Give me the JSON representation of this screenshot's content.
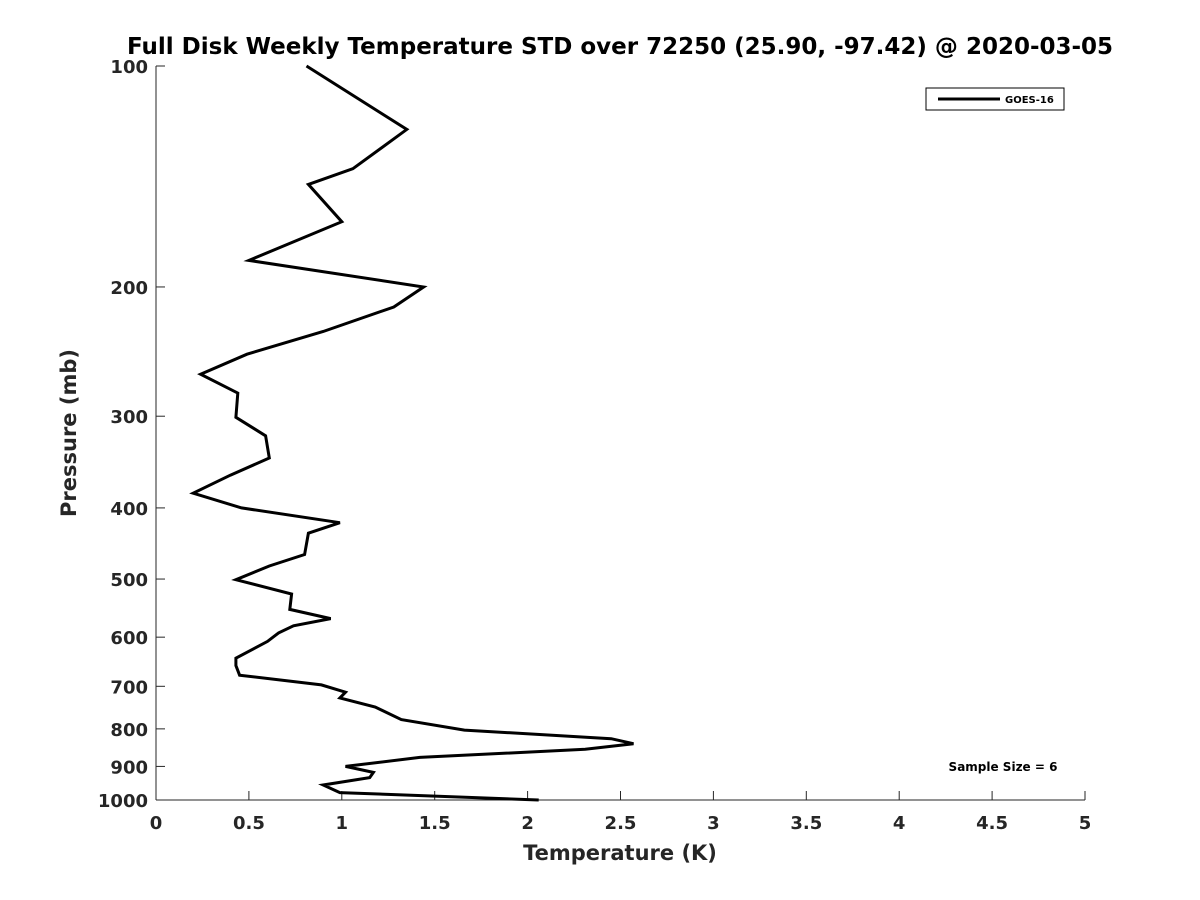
{
  "chart_data": {
    "type": "line",
    "title": "Full Disk Weekly Temperature STD over 72250 (25.90, -97.42) @ 2020-03-05",
    "xlabel": "Temperature (K)",
    "ylabel": "Pressure (mb)",
    "xlim": [
      0,
      5
    ],
    "ylim": [
      100,
      1000
    ],
    "y_scale": "log",
    "y_reversed": true,
    "x_ticks": [
      "0",
      "0.5",
      "1",
      "1.5",
      "2",
      "2.5",
      "3",
      "3.5",
      "4",
      "4.5",
      "5"
    ],
    "y_ticks": [
      "100",
      "200",
      "300",
      "400",
      "500",
      "600",
      "700",
      "800",
      "900",
      "1000"
    ],
    "grid": false,
    "legend_position": "top-right",
    "series": [
      {
        "name": "GOES-16",
        "color": "#000000",
        "points": [
          [
            0.81,
            100
          ],
          [
            1.35,
            122
          ],
          [
            1.06,
            138
          ],
          [
            0.82,
            145
          ],
          [
            1.0,
            163
          ],
          [
            0.5,
            184
          ],
          [
            1.44,
            200
          ],
          [
            1.28,
            213
          ],
          [
            0.9,
            230
          ],
          [
            0.49,
            247
          ],
          [
            0.24,
            263
          ],
          [
            0.44,
            279
          ],
          [
            0.43,
            301
          ],
          [
            0.59,
            319
          ],
          [
            0.61,
            342
          ],
          [
            0.4,
            361
          ],
          [
            0.2,
            382
          ],
          [
            0.46,
            400
          ],
          [
            0.99,
            419
          ],
          [
            0.82,
            433
          ],
          [
            0.8,
            463
          ],
          [
            0.61,
            480
          ],
          [
            0.43,
            501
          ],
          [
            0.73,
            524
          ],
          [
            0.72,
            550
          ],
          [
            0.94,
            566
          ],
          [
            0.74,
            579
          ],
          [
            0.66,
            592
          ],
          [
            0.6,
            608
          ],
          [
            0.43,
            641
          ],
          [
            0.43,
            656
          ],
          [
            0.45,
            676
          ],
          [
            0.89,
            697
          ],
          [
            1.02,
            713
          ],
          [
            0.99,
            726
          ],
          [
            1.18,
            747
          ],
          [
            1.32,
            777
          ],
          [
            1.66,
            803
          ],
          [
            2.45,
            825
          ],
          [
            2.57,
            838
          ],
          [
            2.31,
            853
          ],
          [
            1.42,
            875
          ],
          [
            1.02,
            900
          ],
          [
            1.17,
            917
          ],
          [
            1.15,
            932
          ],
          [
            0.9,
            954
          ],
          [
            0.99,
            977
          ],
          [
            2.06,
            1000
          ]
        ]
      }
    ],
    "annotation": "Sample Size = 6"
  }
}
